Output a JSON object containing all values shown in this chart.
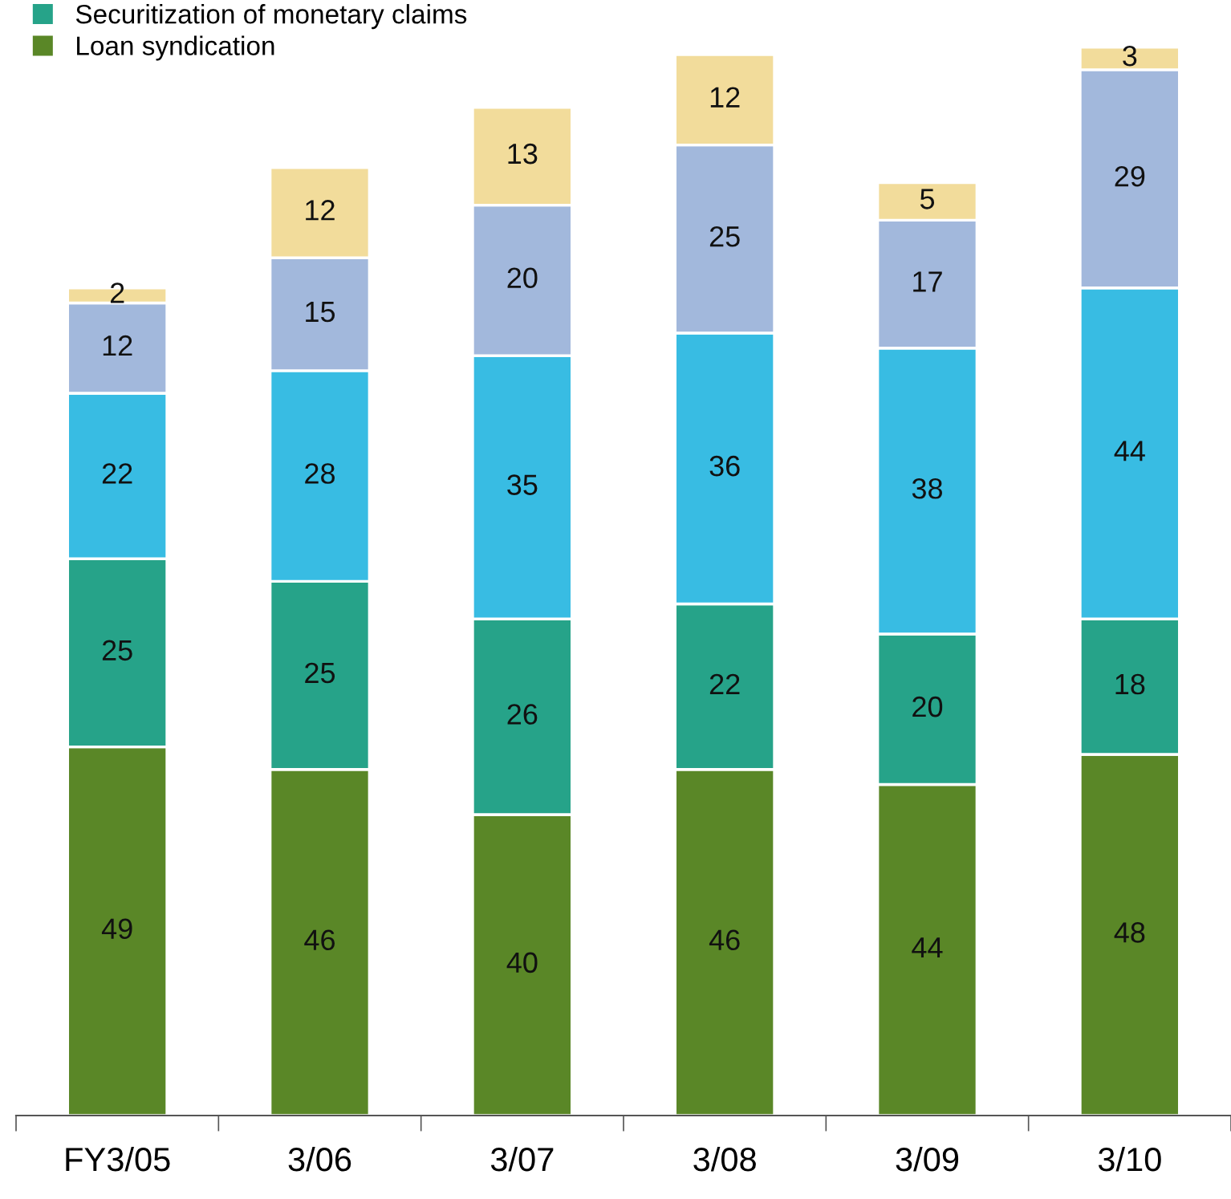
{
  "chart_data": {
    "type": "bar",
    "stacked": true,
    "data_labels": true,
    "legend": "top left",
    "grid": false,
    "categories": [
      "FY3/05",
      "3/06",
      "3/07",
      "3/08",
      "3/09",
      "3/10"
    ],
    "ylim": [
      0,
      144
    ],
    "series": [
      {
        "name": "Loan syndication",
        "color": "#5a8727",
        "values": [
          49,
          46,
          40,
          46,
          44,
          48
        ]
      },
      {
        "name": "Securitization of monetary claims",
        "color": "#26a389",
        "values": [
          25,
          25,
          26,
          22,
          20,
          18
        ]
      },
      {
        "color": "#38bce3",
        "values": [
          22,
          28,
          35,
          36,
          38,
          44
        ]
      },
      {
        "color": "#a2b8dc",
        "values": [
          12,
          15,
          20,
          25,
          17,
          29
        ]
      },
      {
        "color": "#f2dc9b",
        "values": [
          2,
          12,
          13,
          12,
          5,
          3
        ]
      }
    ]
  }
}
